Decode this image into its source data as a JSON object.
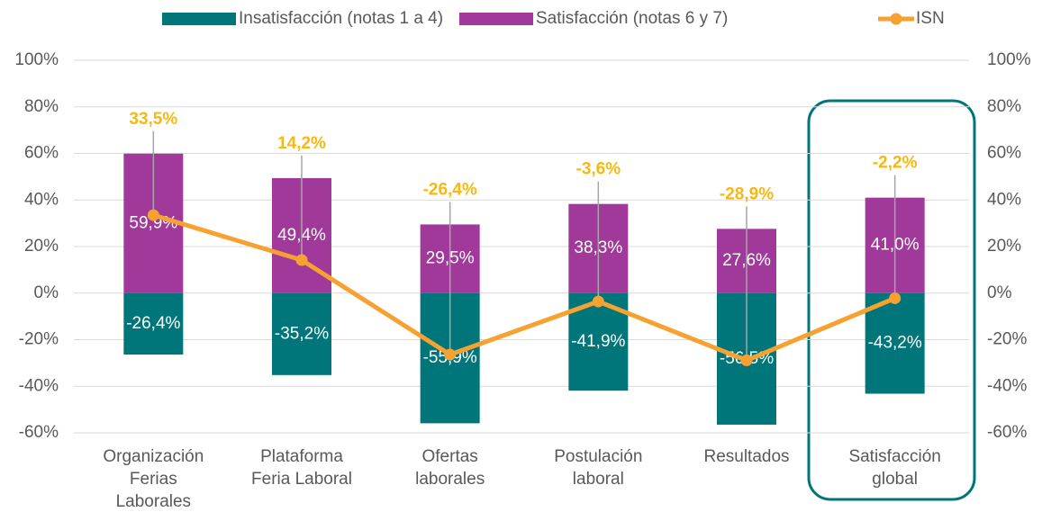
{
  "chart_data": {
    "type": "bar",
    "categories": [
      [
        "Organización",
        "Ferias",
        "Laborales"
      ],
      [
        "Plataforma",
        "Feria Laboral"
      ],
      [
        "Ofertas",
        "laborales"
      ],
      [
        "Postulación",
        "laboral"
      ],
      [
        "Resultados"
      ],
      [
        "Satisfacción",
        "global"
      ]
    ],
    "series": [
      {
        "name": "Insatisfacción (notas 1 a 4)",
        "color": "#00767a",
        "values": [
          -26.4,
          -35.2,
          -55.9,
          -41.9,
          -56.5,
          -43.2
        ],
        "value_labels": [
          "-26,4%",
          "-35,2%",
          "-55,9%",
          "-41,9%",
          "-56,5%",
          "-43,2%"
        ]
      },
      {
        "name": "Satisfacción (notas 6 y 7)",
        "color": "#a0399a",
        "values": [
          59.9,
          49.4,
          29.5,
          38.3,
          27.6,
          41.0
        ],
        "value_labels": [
          "59,9%",
          "49,4%",
          "29,5%",
          "38,3%",
          "27,6%",
          "41,0%"
        ]
      },
      {
        "name": "ISN",
        "type": "line",
        "color": "#f7a130",
        "label_color": "#f9b80f",
        "values": [
          33.5,
          14.2,
          -26.4,
          -3.6,
          -28.9,
          -2.2
        ],
        "value_labels": [
          "33,5%",
          "14,2%",
          "-26,4%",
          "-3,6%",
          "-28,9%",
          "-2,2%"
        ]
      }
    ],
    "ylim": [
      -60,
      100
    ],
    "yticks": [
      {
        "value": -60,
        "label": "-60%"
      },
      {
        "value": -40,
        "label": "-40%"
      },
      {
        "value": -20,
        "label": "-20%"
      },
      {
        "value": 0,
        "label": "0%"
      },
      {
        "value": 20,
        "label": "20%"
      },
      {
        "value": 40,
        "label": "40%"
      },
      {
        "value": 60,
        "label": "60%"
      },
      {
        "value": 80,
        "label": "80%"
      },
      {
        "value": 100,
        "label": "100%"
      }
    ],
    "y2lim": [
      -60,
      100
    ],
    "y2ticks": [
      {
        "value": -60,
        "label": "-60%"
      },
      {
        "value": -40,
        "label": "-40%"
      },
      {
        "value": -20,
        "label": "-20%"
      },
      {
        "value": 0,
        "label": "0%"
      },
      {
        "value": 20,
        "label": "20%"
      },
      {
        "value": 40,
        "label": "40%"
      },
      {
        "value": 60,
        "label": "60%"
      },
      {
        "value": 80,
        "label": "80%"
      },
      {
        "value": 100,
        "label": "100%"
      }
    ],
    "grid": true,
    "legend": "top"
  }
}
